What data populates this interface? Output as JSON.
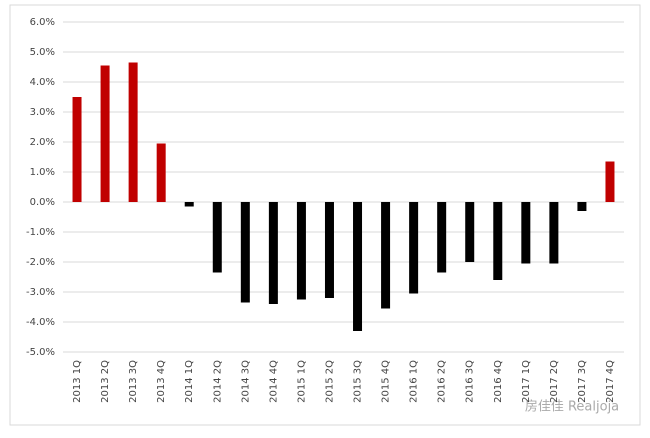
{
  "chart_data": {
    "type": "bar",
    "categories": [
      "2013 1Q",
      "2013 2Q",
      "2013 3Q",
      "2013 4Q",
      "2014 1Q",
      "2014 2Q",
      "2014 3Q",
      "2014 4Q",
      "2015 1Q",
      "2015 2Q",
      "2015 3Q",
      "2015 4Q",
      "2016 1Q",
      "2016 2Q",
      "2016 3Q",
      "2016 4Q",
      "2017 1Q",
      "2017 2Q",
      "2017 3Q",
      "2017 4Q"
    ],
    "values": [
      3.5,
      4.55,
      4.65,
      1.95,
      -0.15,
      -2.35,
      -3.35,
      -3.4,
      -3.25,
      -3.2,
      -4.3,
      -3.55,
      -3.05,
      -2.35,
      -2.0,
      -2.6,
      -2.05,
      -2.05,
      -0.3,
      1.35
    ],
    "positive_color": "#c00000",
    "negative_color": "#000000",
    "ylim": [
      -5,
      6
    ],
    "yticks": [
      {
        "value": -5,
        "label": "-5.0%"
      },
      {
        "value": -4,
        "label": "-4.0%"
      },
      {
        "value": -3,
        "label": "-3.0%"
      },
      {
        "value": -2,
        "label": "-2.0%"
      },
      {
        "value": -1,
        "label": "-1.0%"
      },
      {
        "value": 0,
        "label": "0.0%"
      },
      {
        "value": 1,
        "label": "1.0%"
      },
      {
        "value": 2,
        "label": "2.0%"
      },
      {
        "value": 3,
        "label": "3.0%"
      },
      {
        "value": 4,
        "label": "4.0%"
      },
      {
        "value": 5,
        "label": "5.0%"
      },
      {
        "value": 6,
        "label": "6.0%"
      }
    ],
    "grid": true,
    "watermark": "房佳佳 Realjoja"
  }
}
